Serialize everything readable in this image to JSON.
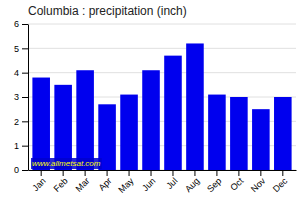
{
  "chart_data": {
    "type": "bar",
    "title": "Columbia : precipitation (inch)",
    "categories": [
      "Jan",
      "Feb",
      "Mar",
      "Apr",
      "May",
      "Jun",
      "Jul",
      "Aug",
      "Sep",
      "Oct",
      "Nov",
      "Dec"
    ],
    "values": [
      3.8,
      3.5,
      4.1,
      2.7,
      3.1,
      4.1,
      4.7,
      5.2,
      3.1,
      3.0,
      2.5,
      3.0
    ],
    "color": "#0000EE",
    "ylim": [
      0,
      6
    ],
    "yticks": [
      0,
      1,
      2,
      3,
      4,
      5,
      6
    ],
    "grid": true,
    "annotations": [
      "www.allmetsat.com"
    ]
  }
}
